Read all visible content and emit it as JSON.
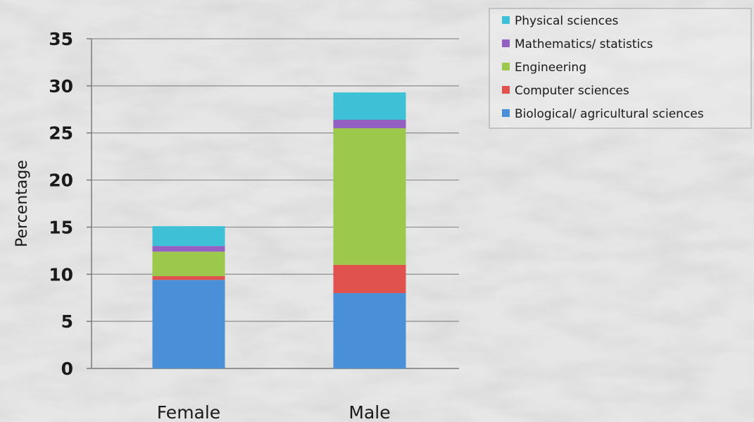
{
  "chart_data": {
    "type": "bar",
    "stacked": true,
    "categories": [
      "Female",
      "Male"
    ],
    "ylabel": "Percentage",
    "xlabel": "",
    "ylim": [
      0,
      35
    ],
    "yticks": [
      0,
      5,
      10,
      15,
      20,
      25,
      30,
      35
    ],
    "grid": true,
    "legend_position": "top-right",
    "series": [
      {
        "name": "Biological/ agricultural sciences",
        "color": "#4a90d9",
        "values": [
          9.4,
          8.0
        ]
      },
      {
        "name": "Computer sciences",
        "color": "#e0524d",
        "values": [
          0.4,
          3.0
        ]
      },
      {
        "name": "Engineering",
        "color": "#9cc84c",
        "values": [
          2.6,
          14.5
        ]
      },
      {
        "name": "Mathematics/ statistics",
        "color": "#9460c2",
        "values": [
          0.6,
          0.9
        ]
      },
      {
        "name": "Physical sciences",
        "color": "#3ec0d6",
        "values": [
          2.1,
          2.9
        ]
      }
    ]
  }
}
